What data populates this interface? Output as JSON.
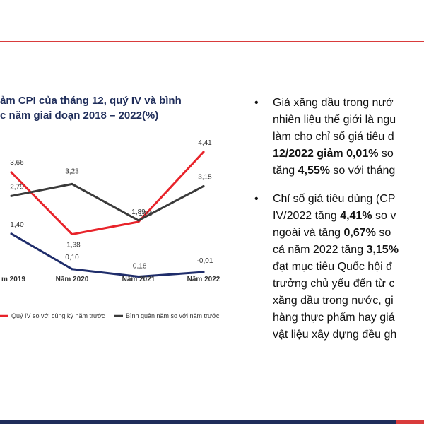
{
  "chart_title": {
    "line1": "ảm CPI của tháng 12, quý IV và bình",
    "line2": "c năm giai đoạn 2018 – 2022(%)"
  },
  "bullets": [
    [
      [
        {
          "t": "Giá xăng dầu trong nướ"
        }
      ],
      [
        {
          "t": "nhiên liệu thế giới là ngu"
        }
      ],
      [
        {
          "t": "làm cho chỉ số giá tiêu d"
        }
      ],
      [
        {
          "t": "12/2022 giảm ",
          "b": true
        },
        {
          "t": "0,01%",
          "b": true
        },
        {
          "t": " so"
        }
      ],
      [
        {
          "t": "tăng "
        },
        {
          "t": "4,55%",
          "b": true
        },
        {
          "t": " so với tháng"
        }
      ]
    ],
    [
      [
        {
          "t": "Chỉ số giá tiêu dùng (CP"
        }
      ],
      [
        {
          "t": "IV/2022 tăng "
        },
        {
          "t": "4,41%",
          "b": true
        },
        {
          "t": " so v"
        }
      ],
      [
        {
          "t": "ngoài và tăng "
        },
        {
          "t": "0,67%",
          "b": true
        },
        {
          "t": " so"
        }
      ],
      [
        {
          "t": "cả năm 2022 tăng "
        },
        {
          "t": "3,15%",
          "b": true
        }
      ],
      [
        {
          "t": "đạt mục tiêu Quốc hội đ"
        }
      ],
      [
        {
          "t": "trưởng chủ yếu đến từ c"
        }
      ],
      [
        {
          "t": "xăng dầu trong nước, gi"
        }
      ],
      [
        {
          "t": "hàng thực phẩm hay giá"
        }
      ],
      [
        {
          "t": "vật liệu xây dựng đều gh"
        }
      ]
    ]
  ],
  "chart_data": {
    "type": "line",
    "categories": [
      "m 2019",
      "Năm 2020",
      "Năm 2021",
      "Năm 2022"
    ],
    "series": [
      {
        "name": "Quý IV so với cùng kỳ năm trước",
        "color": "#e8232a",
        "values": [
          3.66,
          1.38,
          1.84,
          4.41
        ],
        "labels": [
          "3,66",
          "1,38",
          "1,84",
          "4,41"
        ]
      },
      {
        "name": "Bình quân năm so với năm trước",
        "color": "#3a3a3a",
        "values": [
          2.79,
          3.23,
          1.89,
          3.15
        ],
        "labels": [
          "2,79",
          "3,23",
          "1,89",
          "3,15"
        ]
      },
      {
        "name": "",
        "color": "#1f2d6b",
        "values": [
          1.4,
          0.1,
          -0.18,
          -0.01
        ],
        "labels": [
          "1,40",
          "0,10",
          "-0,18",
          "-0,01"
        ]
      }
    ],
    "ylim": [
      -0.4,
      4.8
    ],
    "legend": "bottom"
  }
}
